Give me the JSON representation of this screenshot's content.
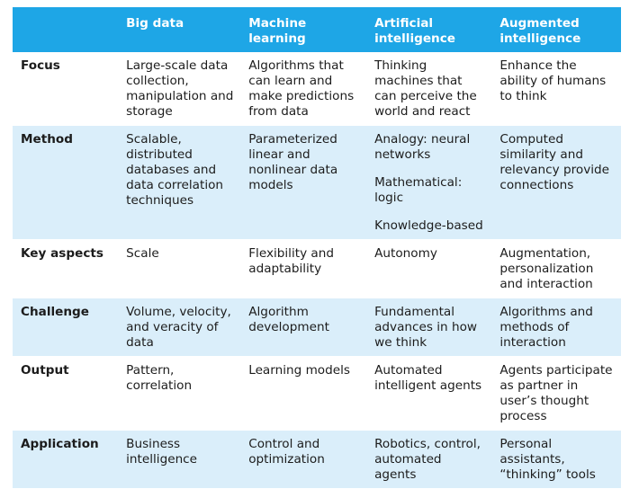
{
  "table": {
    "headers": [
      "",
      "Big data",
      "Machine learning",
      "Artificial intelligence",
      "Augmented intelligence"
    ],
    "rows": [
      {
        "label": "Focus",
        "cells": [
          [
            "Large-scale data collection, manipulation and storage"
          ],
          [
            "Algorithms that can learn and make predictions from data"
          ],
          [
            "Thinking machines that can perceive the world and react"
          ],
          [
            "Enhance the ability of humans to think"
          ]
        ]
      },
      {
        "label": "Method",
        "cells": [
          [
            "Scalable, distributed databases and data correlation techniques"
          ],
          [
            "Parameterized linear and nonlinear data models"
          ],
          [
            "Analogy: neural networks",
            "Mathematical: logic",
            "Knowledge-based"
          ],
          [
            "Computed similarity and relevancy provide connections"
          ]
        ]
      },
      {
        "label": "Key aspects",
        "cells": [
          [
            "Scale"
          ],
          [
            "Flexibility and adaptability"
          ],
          [
            "Autonomy"
          ],
          [
            "Augmentation, personalization and interaction"
          ]
        ]
      },
      {
        "label": "Challenge",
        "cells": [
          [
            "Volume, velocity, and veracity of data"
          ],
          [
            "Algorithm development"
          ],
          [
            "Fundamental advances in how we think"
          ],
          [
            "Algorithms and methods of interaction"
          ]
        ]
      },
      {
        "label": "Output",
        "cells": [
          [
            "Pattern, correlation"
          ],
          [
            "Learning models"
          ],
          [
            "Automated intelligent agents"
          ],
          [
            "Agents participate as partner in user’s thought process"
          ]
        ]
      },
      {
        "label": "Application",
        "cells": [
          [
            "Business intelligence"
          ],
          [
            "Control and optimization"
          ],
          [
            "Robotics, control, automated agents"
          ],
          [
            "Personal assistants, “thinking” tools"
          ]
        ]
      }
    ]
  }
}
